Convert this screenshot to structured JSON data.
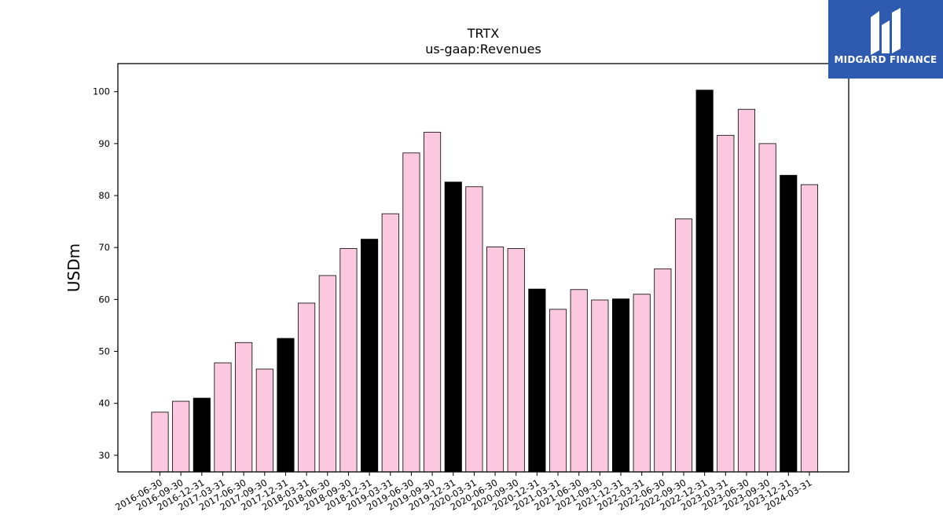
{
  "brand": {
    "name": "MIDGARD FINANCE",
    "bg_color": "#2e5bb0",
    "icon": "midgard-logo-icon"
  },
  "chart_data": {
    "type": "bar",
    "title": "TRTX",
    "subtitle": "us-gaap:Revenues",
    "xlabel": "",
    "ylabel": "USDm",
    "ylim": [
      26.8,
      105.4
    ],
    "yticks": [
      30,
      40,
      50,
      60,
      70,
      80,
      90,
      100
    ],
    "grid": false,
    "categories": [
      "2016-06-30",
      "2016-09-30",
      "2016-12-31",
      "2017-03-31",
      "2017-06-30",
      "2017-09-30",
      "2017-12-31",
      "2018-03-31",
      "2018-06-30",
      "2018-09-30",
      "2018-12-31",
      "2019-03-31",
      "2019-06-30",
      "2019-09-30",
      "2019-12-31",
      "2020-03-31",
      "2020-06-30",
      "2020-09-30",
      "2020-12-31",
      "2021-03-31",
      "2021-06-30",
      "2021-09-30",
      "2021-12-31",
      "2022-03-31",
      "2022-06-30",
      "2022-09-30",
      "2022-12-31",
      "2023-03-31",
      "2023-06-30",
      "2023-09-30",
      "2023-12-31",
      "2024-03-31"
    ],
    "values": [
      38.3,
      40.4,
      41.0,
      47.8,
      51.7,
      46.6,
      52.5,
      59.3,
      64.6,
      69.8,
      71.6,
      76.5,
      88.2,
      92.2,
      82.6,
      81.7,
      70.1,
      69.8,
      62.0,
      58.1,
      61.9,
      59.9,
      60.1,
      61.0,
      65.9,
      75.5,
      100.3,
      91.6,
      96.6,
      90.0,
      83.9,
      82.1
    ],
    "colors": {
      "default": "#fbc8e0",
      "year_end": "#000000",
      "edge": "#000000"
    }
  }
}
